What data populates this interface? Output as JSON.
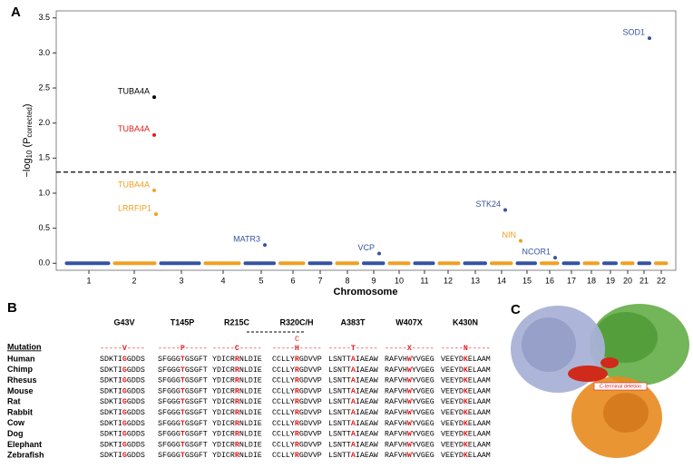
{
  "panel_labels": [
    "A",
    "B",
    "C"
  ],
  "chart_data": {
    "type": "scatter",
    "ylabel": {
      "main": "−log",
      "base": "10",
      "open": " (P",
      "sub": "corrected",
      "close": ")"
    },
    "xlabel": "Chromosome",
    "categories": [
      "1",
      "2",
      "3",
      "4",
      "5",
      "6",
      "7",
      "8",
      "9",
      "10",
      "11",
      "12",
      "13",
      "14",
      "15",
      "16",
      "17",
      "18",
      "19",
      "20",
      "21",
      "22"
    ],
    "segment_colors": [
      "#3553a0",
      "#f0a022"
    ],
    "ylim": [
      -0.1,
      3.6
    ],
    "yticks": [
      {
        "value": 0,
        "label": "0.0"
      },
      {
        "value": 0.5,
        "label": "0.5"
      },
      {
        "value": 1,
        "label": "1.0"
      },
      {
        "value": 1.5,
        "label": "1.5"
      },
      {
        "value": 2,
        "label": "2.0"
      },
      {
        "value": 2.5,
        "label": "2.5"
      },
      {
        "value": 3,
        "label": "3.0"
      },
      {
        "value": 3.5,
        "label": "3.5"
      }
    ],
    "threshold": 1.3,
    "series": [
      {
        "name": "TUBA4A",
        "color": "#000000",
        "values": [
          2.37
        ]
      },
      {
        "name": "TUBA4A",
        "color": "#e31a1c",
        "values": [
          1.83
        ]
      },
      {
        "name": "TUBA4A",
        "color": "#f0a022",
        "values": [
          1.04
        ]
      },
      {
        "name": "LRRFIP1",
        "color": "#f0a022",
        "values": [
          0.7
        ]
      },
      {
        "name": "MATR3",
        "color": "#3553a0",
        "values": [
          0.26
        ]
      },
      {
        "name": "VCP",
        "color": "#3553a0",
        "values": [
          0.14
        ]
      },
      {
        "name": "STK24",
        "color": "#3553a0",
        "values": [
          0.76
        ]
      },
      {
        "name": "NIN",
        "color": "#f0a022",
        "values": [
          0.32
        ]
      },
      {
        "name": "NCOR1",
        "color": "#3553a0",
        "values": [
          0.08
        ]
      },
      {
        "name": "SOD1",
        "color": "#3553a0",
        "values": [
          3.21
        ]
      }
    ]
  },
  "alignment": {
    "mutations": [
      "G43V",
      "T145P",
      "R215C",
      "R320C/H",
      "A383T",
      "W407X",
      "K430N"
    ],
    "mutation_label": "Mutation",
    "mutation_row": [
      "-----V----",
      "-----P-----",
      "-----C-----",
      "-----H-----",
      "-----T-----",
      "-----X-----",
      "-----N-----"
    ],
    "extra_mark": "C",
    "rows": [
      {
        "species": "Human",
        "sequences": [
          "SDKTIGGDDS",
          "SFGGGTGSGFT",
          "YDICRRNLDIE",
          "CCLLYRGDVVP",
          "LSNTTAIAEAW",
          "RAFVHWYVGEG",
          "VEEYDKELAAM"
        ]
      },
      {
        "species": "Chimp",
        "sequences": [
          "SDKTIGGDDS",
          "SFGGGTGSGFT",
          "YDICRRNLDIE",
          "CCLLYRGDVVP",
          "LSNTTAIAEAW",
          "RAFVHWYVGEG",
          "VEEYDKELAAM"
        ]
      },
      {
        "species": "Rhesus",
        "sequences": [
          "SDKTIGGDDS",
          "SFGGGTGSGFT",
          "YDICRRNLDIE",
          "CCLLYRGDVVP",
          "LSNTTAIAEAW",
          "RAFVHWYVGEG",
          "VEEYDKELAAM"
        ]
      },
      {
        "species": "Mouse",
        "sequences": [
          "SDKTIGGDDS",
          "SFGGGTGSGFT",
          "YDICRRNLDIE",
          "CCLLYRGDVVP",
          "LSNTTAIAEAW",
          "RAFVHWYVGEG",
          "VEEYDKELAAM"
        ]
      },
      {
        "species": "Rat",
        "sequences": [
          "SDKTIGGDDS",
          "SFGGGTGSGFT",
          "YDICRRNLDIE",
          "CCLLYRGDVVP",
          "LSNTTAIAEAW",
          "RAFVHWYVGEG",
          "VEEYDKELAAM"
        ]
      },
      {
        "species": "Rabbit",
        "sequences": [
          "SDKTIGGDDS",
          "SFGGGTGSGFT",
          "YDICRRNLDIE",
          "CCLLYRGDVVP",
          "LSNTTAIAEAW",
          "RAFVHWYVGEG",
          "VEEYDKELAAM"
        ]
      },
      {
        "species": "Cow",
        "sequences": [
          "SDKTIGGDDS",
          "SFGGGTGSGFT",
          "YDICRRNLDIE",
          "CCLLYRGDVVP",
          "LSNTTAIAEAW",
          "RAFVHWYVGEG",
          "VEEYDKELAAM"
        ]
      },
      {
        "species": "Dog",
        "sequences": [
          "SDKTIGGDDS",
          "SFGGGTGSGFT",
          "YDICRRNLDIE",
          "CCLLYRGDVVP",
          "LSNTTAIAEAW",
          "RAFVHWYVGEG",
          "VEEYDKELAAM"
        ]
      },
      {
        "species": "Elephant",
        "sequences": [
          "SDKTIGGDDS",
          "SFGGGTGSGFT",
          "YDICRRNLDIE",
          "CCLLYRGDVVP",
          "LSNTTAIAEAW",
          "RAFVHWYVGEG",
          "VEEYDKELAAM"
        ]
      },
      {
        "species": "Zebrafish",
        "sequences": [
          "SDKTIGGDDS",
          "SFGGGTGSGFT",
          "YDICRRNLDIE",
          "CCLLYRGDVVP",
          "LSNTTAIAEAW",
          "RAFVHWYVGEG",
          "VEEYDKELAAM"
        ]
      }
    ]
  },
  "structure": {
    "annotation": "C-terminal deletion"
  }
}
